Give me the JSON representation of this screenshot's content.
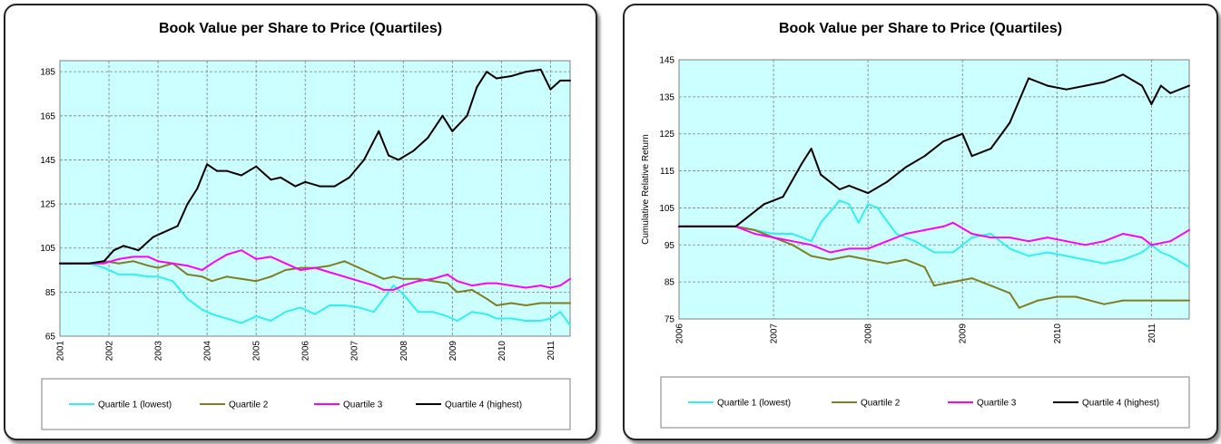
{
  "chart_data": [
    {
      "type": "line",
      "title": "Book Value per Share to Price (Quartiles)",
      "xlabel": "",
      "ylabel": "",
      "xlim": [
        2001.0,
        2011.4
      ],
      "ylim": [
        65,
        190
      ],
      "y_ticks": [
        65,
        85,
        105,
        125,
        145,
        165,
        185
      ],
      "x_ticks": [
        "2001",
        "2002",
        "2003",
        "2004",
        "2005",
        "2006",
        "2007",
        "2008",
        "2009",
        "2010",
        "2011"
      ],
      "plot_background": "#ccffff",
      "grid": true,
      "legend_position": "bottom",
      "series": [
        {
          "name": "Quartile 1 (lowest)",
          "color": "#33f0f0",
          "x": [
            2001.0,
            2001.6,
            2001.9,
            2002.2,
            2002.5,
            2002.8,
            2003.0,
            2003.3,
            2003.6,
            2003.9,
            2004.1,
            2004.4,
            2004.7,
            2005.0,
            2005.3,
            2005.6,
            2005.9,
            2006.2,
            2006.5,
            2006.8,
            2007.1,
            2007.4,
            2007.6,
            2007.8,
            2008.0,
            2008.3,
            2008.6,
            2008.9,
            2009.1,
            2009.4,
            2009.7,
            2009.9,
            2010.2,
            2010.5,
            2010.8,
            2011.0,
            2011.2,
            2011.4
          ],
          "y": [
            98,
            98,
            96,
            93,
            93,
            92,
            92,
            90,
            82,
            77,
            75,
            73,
            71,
            74,
            72,
            76,
            78,
            75,
            79,
            79,
            78,
            76,
            82,
            88,
            84,
            76,
            76,
            74,
            72,
            76,
            75,
            73,
            73,
            72,
            72,
            73,
            76,
            70
          ]
        },
        {
          "name": "Quartile 2",
          "color": "#7f7f1f",
          "x": [
            2001.0,
            2001.6,
            2001.9,
            2002.2,
            2002.5,
            2002.8,
            2003.0,
            2003.3,
            2003.6,
            2003.9,
            2004.1,
            2004.4,
            2004.7,
            2005.0,
            2005.3,
            2005.6,
            2005.9,
            2006.2,
            2006.5,
            2006.8,
            2007.1,
            2007.4,
            2007.6,
            2007.8,
            2008.0,
            2008.3,
            2008.6,
            2008.9,
            2009.1,
            2009.4,
            2009.7,
            2009.9,
            2010.2,
            2010.5,
            2010.8,
            2011.0,
            2011.2,
            2011.4
          ],
          "y": [
            98,
            98,
            99,
            98,
            99,
            97,
            96,
            98,
            93,
            92,
            90,
            92,
            91,
            90,
            92,
            95,
            96,
            96,
            97,
            99,
            96,
            93,
            91,
            92,
            91,
            91,
            90,
            89,
            85,
            86,
            82,
            79,
            80,
            79,
            80,
            80,
            80,
            80
          ]
        },
        {
          "name": "Quartile 3",
          "color": "#ff00ff",
          "x": [
            2001.0,
            2001.6,
            2001.9,
            2002.2,
            2002.5,
            2002.8,
            2003.0,
            2003.3,
            2003.6,
            2003.9,
            2004.1,
            2004.4,
            2004.7,
            2005.0,
            2005.3,
            2005.6,
            2005.9,
            2006.2,
            2006.5,
            2006.8,
            2007.1,
            2007.4,
            2007.6,
            2007.8,
            2008.0,
            2008.3,
            2008.6,
            2008.9,
            2009.1,
            2009.4,
            2009.7,
            2009.9,
            2010.2,
            2010.5,
            2010.8,
            2011.0,
            2011.2,
            2011.4
          ],
          "y": [
            98,
            98,
            98,
            100,
            101,
            101,
            99,
            98,
            97,
            95,
            98,
            102,
            104,
            100,
            101,
            98,
            95,
            96,
            94,
            92,
            90,
            88,
            86,
            86,
            88,
            90,
            91,
            93,
            90,
            88,
            89,
            89,
            88,
            87,
            88,
            87,
            88,
            91
          ]
        },
        {
          "name": "Quartile 4 (highest)",
          "color": "#000000",
          "x": [
            2001.0,
            2001.6,
            2001.9,
            2002.1,
            2002.3,
            2002.6,
            2002.9,
            2003.1,
            2003.4,
            2003.6,
            2003.8,
            2004.0,
            2004.2,
            2004.4,
            2004.7,
            2005.0,
            2005.3,
            2005.5,
            2005.8,
            2006.0,
            2006.3,
            2006.6,
            2006.9,
            2007.2,
            2007.5,
            2007.7,
            2007.9,
            2008.2,
            2008.5,
            2008.8,
            2009.0,
            2009.3,
            2009.5,
            2009.7,
            2009.9,
            2010.2,
            2010.5,
            2010.8,
            2011.0,
            2011.2,
            2011.4
          ],
          "y": [
            98,
            98,
            99,
            104,
            106,
            104,
            110,
            112,
            115,
            125,
            132,
            143,
            140,
            140,
            138,
            142,
            136,
            137,
            133,
            135,
            133,
            133,
            137,
            145,
            158,
            147,
            145,
            149,
            155,
            165,
            158,
            165,
            178,
            185,
            182,
            183,
            185,
            186,
            177,
            181,
            181
          ]
        }
      ]
    },
    {
      "type": "line",
      "title": "Book Value per Share to Price (Quartiles)",
      "xlabel": "",
      "ylabel": "Cumulative Relative Return",
      "xlim": [
        2006.0,
        2011.4
      ],
      "ylim": [
        75,
        145
      ],
      "y_ticks": [
        75,
        85,
        95,
        105,
        115,
        125,
        135,
        145
      ],
      "x_ticks": [
        "2006",
        "2007",
        "2008",
        "2009",
        "2010",
        "2011"
      ],
      "plot_background": "#ccffff",
      "grid": true,
      "legend_position": "bottom",
      "series": [
        {
          "name": "Quartile 1 (lowest)",
          "color": "#33f0f0",
          "x": [
            2006.0,
            2006.6,
            2006.8,
            2007.0,
            2007.2,
            2007.4,
            2007.5,
            2007.7,
            2007.8,
            2007.9,
            2008.0,
            2008.1,
            2008.3,
            2008.5,
            2008.7,
            2008.9,
            2009.1,
            2009.3,
            2009.5,
            2009.7,
            2009.9,
            2010.1,
            2010.3,
            2010.5,
            2010.7,
            2010.9,
            2011.0,
            2011.1,
            2011.2,
            2011.4
          ],
          "y": [
            100,
            100,
            99,
            98,
            98,
            96,
            101,
            107,
            106,
            101,
            106,
            105,
            98,
            96,
            93,
            93,
            97,
            98,
            94,
            92,
            93,
            92,
            91,
            90,
            91,
            93,
            95,
            93,
            92,
            89
          ]
        },
        {
          "name": "Quartile 2",
          "color": "#7f7f1f",
          "x": [
            2006.0,
            2006.6,
            2006.8,
            2007.0,
            2007.2,
            2007.4,
            2007.6,
            2007.8,
            2008.0,
            2008.2,
            2008.4,
            2008.6,
            2008.7,
            2008.9,
            2009.1,
            2009.3,
            2009.5,
            2009.6,
            2009.8,
            2010.0,
            2010.2,
            2010.5,
            2010.7,
            2010.9,
            2011.1,
            2011.4
          ],
          "y": [
            100,
            100,
            99,
            97,
            95,
            92,
            91,
            92,
            91,
            90,
            91,
            89,
            84,
            85,
            86,
            84,
            82,
            78,
            80,
            81,
            81,
            79,
            80,
            80,
            80,
            80
          ]
        },
        {
          "name": "Quartile 3",
          "color": "#ff00ff",
          "x": [
            2006.0,
            2006.6,
            2006.8,
            2007.0,
            2007.2,
            2007.4,
            2007.6,
            2007.8,
            2008.0,
            2008.2,
            2008.4,
            2008.6,
            2008.8,
            2008.9,
            2009.1,
            2009.3,
            2009.5,
            2009.7,
            2009.9,
            2010.1,
            2010.3,
            2010.5,
            2010.7,
            2010.9,
            2011.0,
            2011.2,
            2011.4
          ],
          "y": [
            100,
            100,
            98,
            97,
            96,
            95,
            93,
            94,
            94,
            96,
            98,
            99,
            100,
            101,
            98,
            97,
            97,
            96,
            97,
            96,
            95,
            96,
            98,
            97,
            95,
            96,
            99
          ]
        },
        {
          "name": "Quartile 4 (highest)",
          "color": "#000000",
          "x": [
            2006.0,
            2006.6,
            2006.7,
            2006.9,
            2007.1,
            2007.3,
            2007.4,
            2007.5,
            2007.7,
            2007.8,
            2008.0,
            2008.2,
            2008.4,
            2008.6,
            2008.8,
            2009.0,
            2009.1,
            2009.3,
            2009.5,
            2009.7,
            2009.9,
            2010.1,
            2010.3,
            2010.5,
            2010.7,
            2010.9,
            2011.0,
            2011.1,
            2011.2,
            2011.4
          ],
          "y": [
            100,
            100,
            102,
            106,
            108,
            117,
            121,
            114,
            110,
            111,
            109,
            112,
            116,
            119,
            123,
            125,
            119,
            121,
            128,
            140,
            138,
            137,
            138,
            139,
            141,
            138,
            133,
            138,
            136,
            138
          ]
        }
      ]
    }
  ]
}
